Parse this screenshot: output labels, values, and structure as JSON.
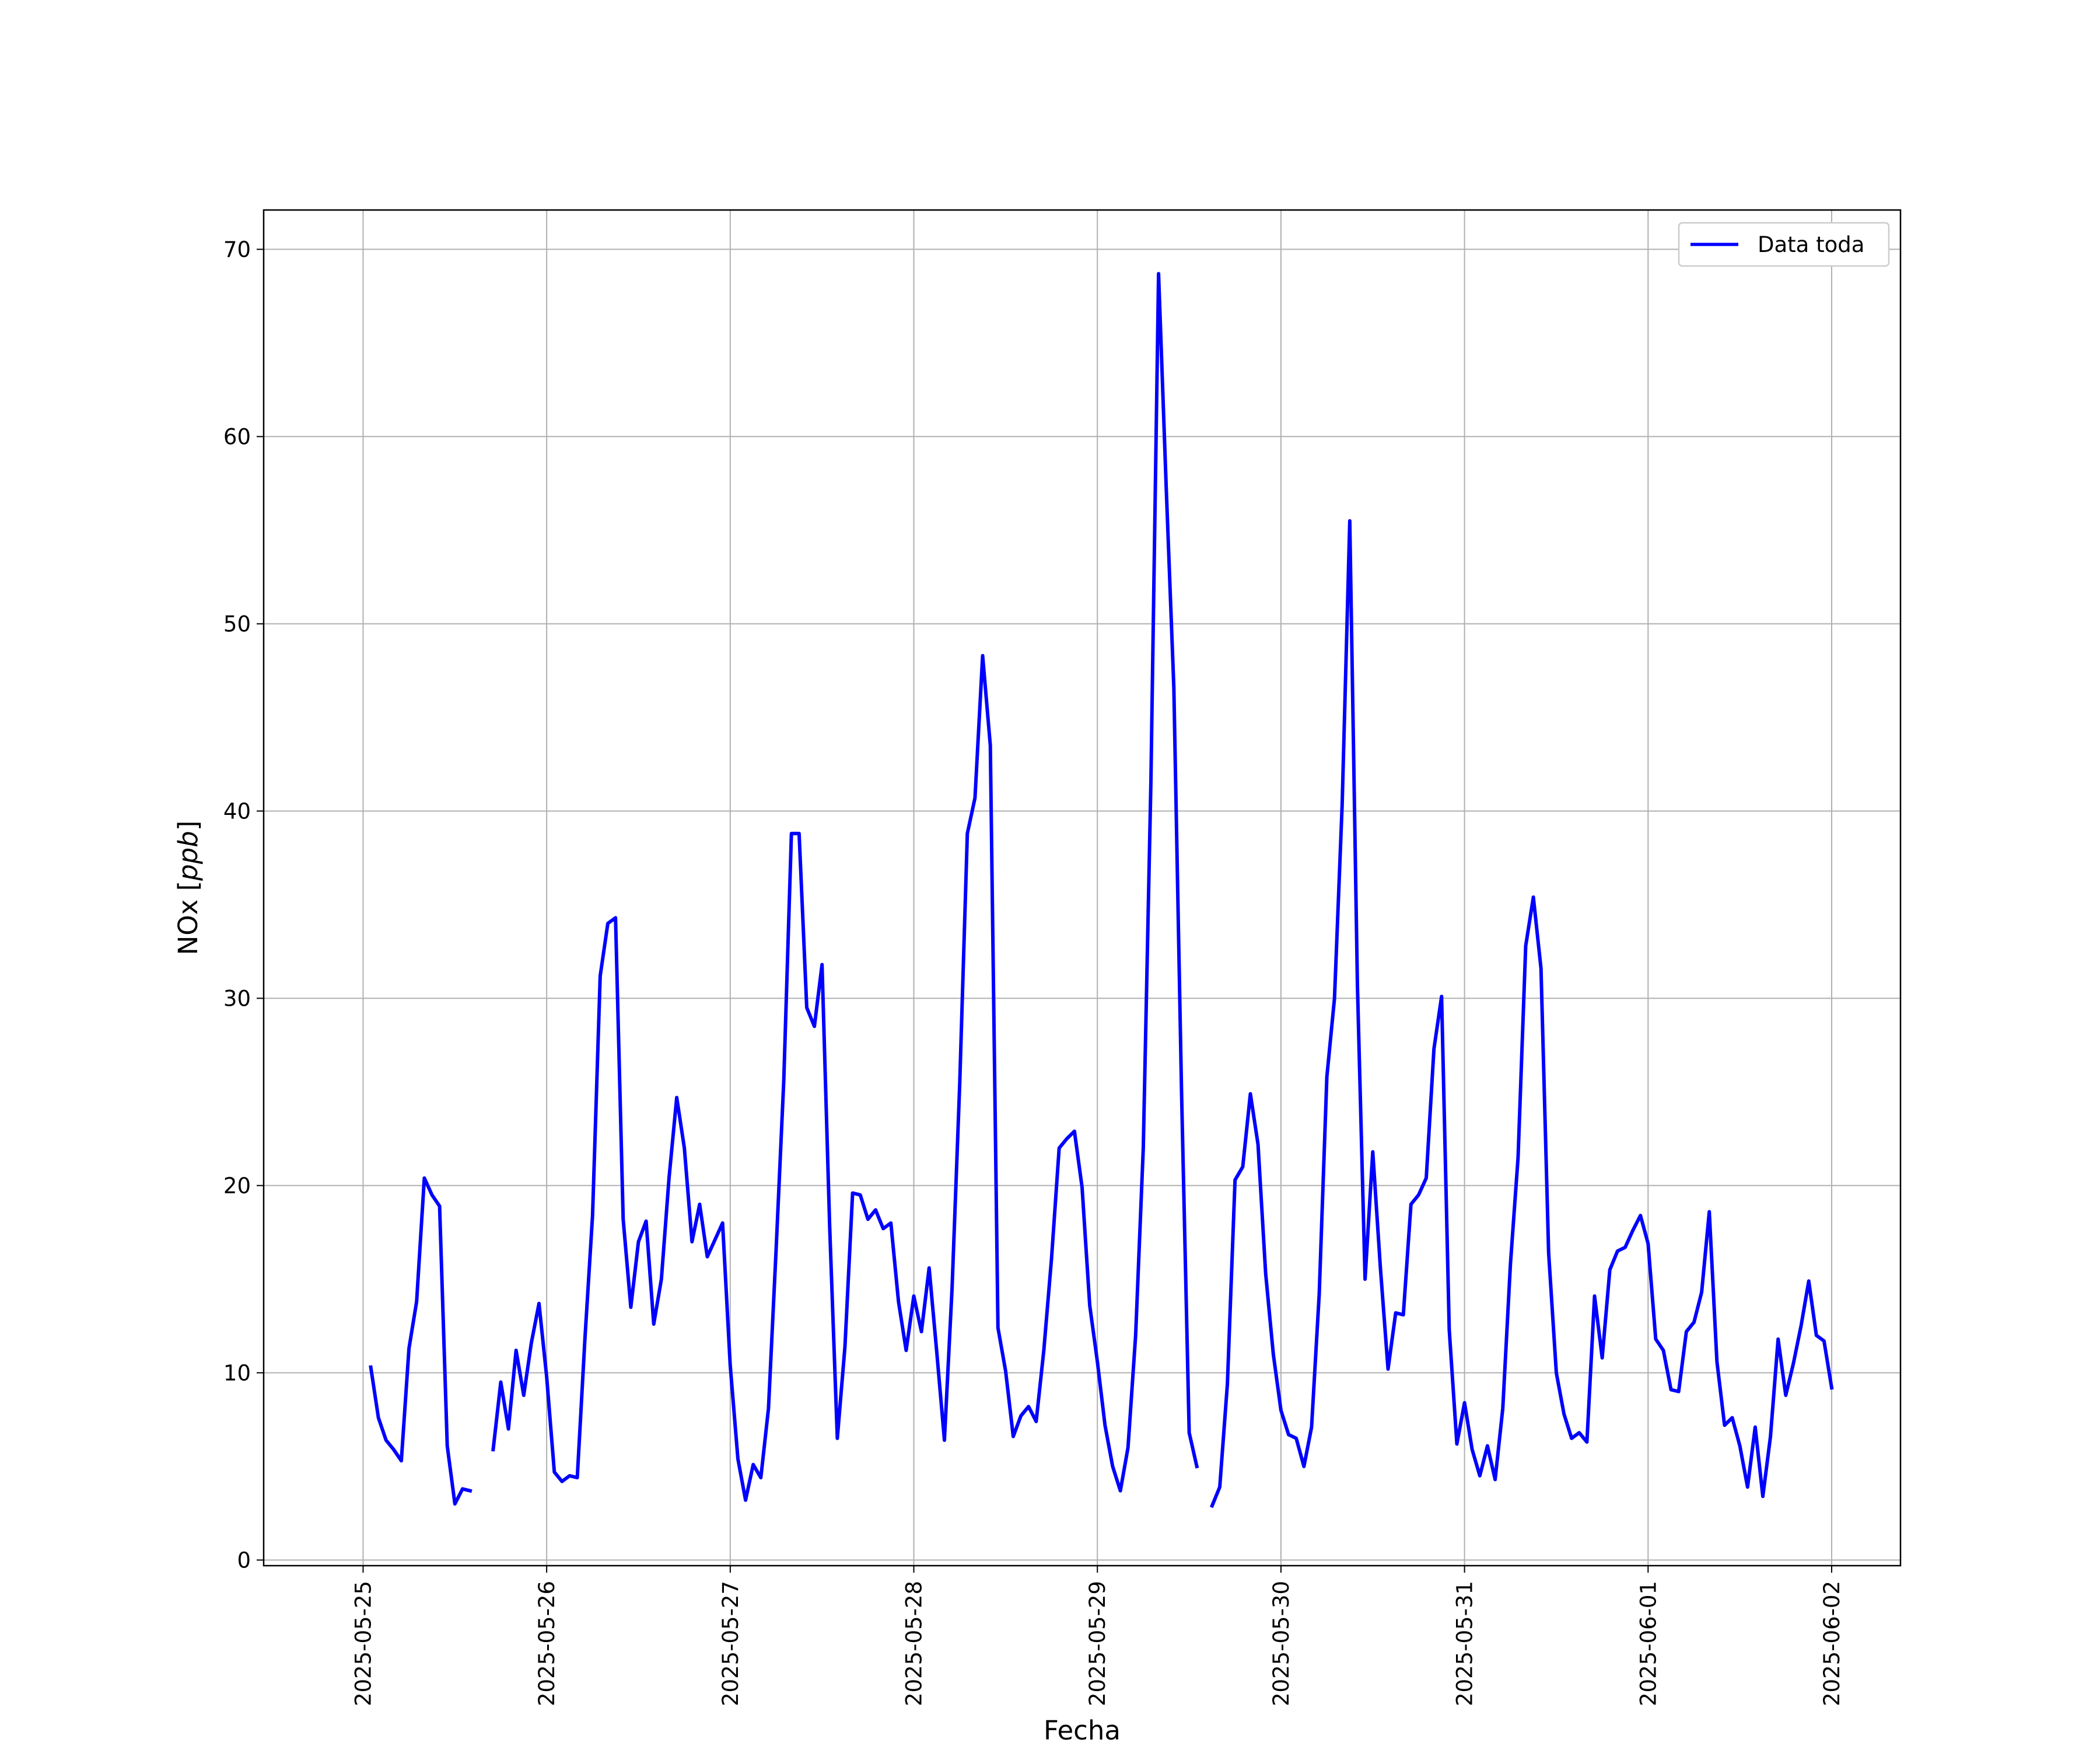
{
  "chart_data": {
    "type": "line",
    "xlabel": "Fecha",
    "ylabel": "NOx [ppb]",
    "ylabel_main": "NOx ",
    "ylabel_open": "[",
    "ylabel_unit": "ppb",
    "ylabel_close": "]",
    "x_ticks": [
      "2025-05-25",
      "2025-05-26",
      "2025-05-27",
      "2025-05-28",
      "2025-05-29",
      "2025-05-30",
      "2025-05-31",
      "2025-06-01",
      "2025-06-02"
    ],
    "y_ticks": [
      0,
      10,
      20,
      30,
      40,
      50,
      60,
      70
    ],
    "y_tick_labels": [
      "0",
      "10",
      "20",
      "30",
      "40",
      "50",
      "60",
      "70"
    ],
    "xlim": [
      "2025-05-24 11:00",
      "2025-06-02 09:00"
    ],
    "ylim": [
      -0.3,
      72.1
    ],
    "grid": true,
    "legend_position": "upper-right",
    "series": [
      {
        "name": "Data toda",
        "color": "#0000ff",
        "segments": [
          [
            [
              "2025-05-25 01:00",
              10.3
            ],
            [
              "2025-05-25 02:00",
              7.6
            ],
            [
              "2025-05-25 03:00",
              6.4
            ],
            [
              "2025-05-25 04:00",
              5.9
            ],
            [
              "2025-05-25 05:00",
              5.3
            ],
            [
              "2025-05-25 06:00",
              11.3
            ],
            [
              "2025-05-25 07:00",
              13.8
            ],
            [
              "2025-05-25 08:00",
              20.4
            ],
            [
              "2025-05-25 09:00",
              19.5
            ],
            [
              "2025-05-25 10:00",
              18.9
            ],
            [
              "2025-05-25 11:00",
              6.1
            ],
            [
              "2025-05-25 12:00",
              3.0
            ],
            [
              "2025-05-25 13:00",
              3.8
            ],
            [
              "2025-05-25 14:00",
              3.7
            ]
          ],
          [
            [
              "2025-05-25 17:00",
              5.9
            ],
            [
              "2025-05-25 18:00",
              9.5
            ],
            [
              "2025-05-25 19:00",
              7.0
            ],
            [
              "2025-05-25 20:00",
              11.2
            ],
            [
              "2025-05-25 21:00",
              8.8
            ],
            [
              "2025-05-25 22:00",
              11.6
            ],
            [
              "2025-05-25 23:00",
              13.7
            ],
            [
              "2025-05-26 00:00",
              9.8
            ],
            [
              "2025-05-26 01:00",
              4.7
            ],
            [
              "2025-05-26 02:00",
              4.2
            ],
            [
              "2025-05-26 03:00",
              4.5
            ],
            [
              "2025-05-26 04:00",
              4.4
            ],
            [
              "2025-05-26 05:00",
              11.8
            ],
            [
              "2025-05-26 06:00",
              18.4
            ],
            [
              "2025-05-26 07:00",
              31.2
            ],
            [
              "2025-05-26 08:00",
              34.0
            ],
            [
              "2025-05-26 09:00",
              34.3
            ],
            [
              "2025-05-26 10:00",
              18.2
            ],
            [
              "2025-05-26 11:00",
              13.5
            ],
            [
              "2025-05-26 12:00",
              17.0
            ],
            [
              "2025-05-26 13:00",
              18.1
            ],
            [
              "2025-05-26 14:00",
              12.6
            ],
            [
              "2025-05-26 15:00",
              15.0
            ],
            [
              "2025-05-26 16:00",
              20.4
            ],
            [
              "2025-05-26 17:00",
              24.7
            ],
            [
              "2025-05-26 18:00",
              22.0
            ],
            [
              "2025-05-26 19:00",
              17.0
            ],
            [
              "2025-05-26 20:00",
              19.0
            ],
            [
              "2025-05-26 21:00",
              16.2
            ],
            [
              "2025-05-26 22:00",
              17.1
            ],
            [
              "2025-05-26 23:00",
              18.0
            ],
            [
              "2025-05-27 00:00",
              10.4
            ],
            [
              "2025-05-27 01:00",
              5.4
            ],
            [
              "2025-05-27 02:00",
              3.2
            ],
            [
              "2025-05-27 03:00",
              5.1
            ],
            [
              "2025-05-27 04:00",
              4.4
            ],
            [
              "2025-05-27 05:00",
              8.1
            ],
            [
              "2025-05-27 06:00",
              16.6
            ],
            [
              "2025-05-27 07:00",
              25.6
            ],
            [
              "2025-05-27 08:00",
              38.8
            ],
            [
              "2025-05-27 09:00",
              38.8
            ],
            [
              "2025-05-27 10:00",
              29.5
            ],
            [
              "2025-05-27 11:00",
              28.5
            ],
            [
              "2025-05-27 12:00",
              31.8
            ],
            [
              "2025-05-27 13:00",
              17.8
            ],
            [
              "2025-05-27 14:00",
              6.5
            ],
            [
              "2025-05-27 15:00",
              11.4
            ],
            [
              "2025-05-27 16:00",
              19.6
            ],
            [
              "2025-05-27 17:00",
              19.5
            ],
            [
              "2025-05-27 18:00",
              18.2
            ],
            [
              "2025-05-27 19:00",
              18.7
            ],
            [
              "2025-05-27 20:00",
              17.7
            ],
            [
              "2025-05-27 21:00",
              18.0
            ],
            [
              "2025-05-27 22:00",
              13.8
            ],
            [
              "2025-05-27 23:00",
              11.2
            ],
            [
              "2025-05-28 00:00",
              14.1
            ],
            [
              "2025-05-28 01:00",
              12.2
            ],
            [
              "2025-05-28 02:00",
              15.6
            ],
            [
              "2025-05-28 03:00",
              11.1
            ],
            [
              "2025-05-28 04:00",
              6.4
            ],
            [
              "2025-05-28 05:00",
              14.5
            ],
            [
              "2025-05-28 06:00",
              25.4
            ],
            [
              "2025-05-28 07:00",
              38.8
            ],
            [
              "2025-05-28 08:00",
              40.7
            ],
            [
              "2025-05-28 09:00",
              48.3
            ],
            [
              "2025-05-28 10:00",
              43.5
            ],
            [
              "2025-05-28 11:00",
              12.4
            ],
            [
              "2025-05-28 12:00",
              10.1
            ],
            [
              "2025-05-28 13:00",
              6.6
            ],
            [
              "2025-05-28 14:00",
              7.7
            ],
            [
              "2025-05-28 15:00",
              8.2
            ],
            [
              "2025-05-28 16:00",
              7.4
            ],
            [
              "2025-05-28 17:00",
              11.2
            ],
            [
              "2025-05-28 18:00",
              16.1
            ],
            [
              "2025-05-28 19:00",
              22.0
            ],
            [
              "2025-05-28 20:00",
              22.5
            ],
            [
              "2025-05-28 21:00",
              22.9
            ],
            [
              "2025-05-28 22:00",
              19.9
            ],
            [
              "2025-05-28 23:00",
              13.6
            ],
            [
              "2025-05-29 00:00",
              10.6
            ],
            [
              "2025-05-29 01:00",
              7.2
            ],
            [
              "2025-05-29 02:00",
              5.0
            ],
            [
              "2025-05-29 03:00",
              3.7
            ],
            [
              "2025-05-29 04:00",
              6.0
            ],
            [
              "2025-05-29 05:00",
              12.0
            ],
            [
              "2025-05-29 06:00",
              22.0
            ],
            [
              "2025-05-29 07:00",
              41.6
            ],
            [
              "2025-05-29 08:00",
              68.7
            ],
            [
              "2025-05-29 09:00",
              57.3
            ],
            [
              "2025-05-29 10:00",
              46.6
            ],
            [
              "2025-05-29 11:00",
              25.0
            ],
            [
              "2025-05-29 12:00",
              6.8
            ],
            [
              "2025-05-29 13:00",
              5.0
            ]
          ],
          [
            [
              "2025-05-29 15:00",
              2.9
            ],
            [
              "2025-05-29 16:00",
              3.9
            ],
            [
              "2025-05-29 17:00",
              9.4
            ],
            [
              "2025-05-29 18:00",
              20.3
            ],
            [
              "2025-05-29 19:00",
              21.0
            ],
            [
              "2025-05-29 20:00",
              24.9
            ],
            [
              "2025-05-29 21:00",
              22.2
            ],
            [
              "2025-05-29 22:00",
              15.3
            ],
            [
              "2025-05-29 23:00",
              11.0
            ],
            [
              "2025-05-30 00:00",
              8.0
            ],
            [
              "2025-05-30 01:00",
              6.7
            ],
            [
              "2025-05-30 02:00",
              6.5
            ],
            [
              "2025-05-30 03:00",
              5.0
            ],
            [
              "2025-05-30 04:00",
              7.1
            ],
            [
              "2025-05-30 05:00",
              14.2
            ],
            [
              "2025-05-30 06:00",
              25.8
            ],
            [
              "2025-05-30 07:00",
              30.0
            ],
            [
              "2025-05-30 08:00",
              40.3
            ],
            [
              "2025-05-30 09:00",
              55.5
            ],
            [
              "2025-05-30 10:00",
              30.7
            ],
            [
              "2025-05-30 11:00",
              15.0
            ],
            [
              "2025-05-30 12:00",
              21.8
            ],
            [
              "2025-05-30 13:00",
              15.6
            ],
            [
              "2025-05-30 14:00",
              10.2
            ],
            [
              "2025-05-30 15:00",
              13.2
            ],
            [
              "2025-05-30 16:00",
              13.1
            ],
            [
              "2025-05-30 17:00",
              19.0
            ],
            [
              "2025-05-30 18:00",
              19.5
            ],
            [
              "2025-05-30 19:00",
              20.4
            ],
            [
              "2025-05-30 20:00",
              27.3
            ],
            [
              "2025-05-30 21:00",
              30.1
            ],
            [
              "2025-05-30 22:00",
              12.3
            ],
            [
              "2025-05-30 23:00",
              6.2
            ],
            [
              "2025-05-31 00:00",
              8.4
            ],
            [
              "2025-05-31 01:00",
              5.9
            ],
            [
              "2025-05-31 02:00",
              4.5
            ],
            [
              "2025-05-31 03:00",
              6.1
            ],
            [
              "2025-05-31 04:00",
              4.3
            ],
            [
              "2025-05-31 05:00",
              8.1
            ],
            [
              "2025-05-31 06:00",
              15.8
            ],
            [
              "2025-05-31 07:00",
              21.5
            ],
            [
              "2025-05-31 08:00",
              32.8
            ],
            [
              "2025-05-31 09:00",
              35.4
            ],
            [
              "2025-05-31 10:00",
              31.6
            ],
            [
              "2025-05-31 11:00",
              16.4
            ],
            [
              "2025-05-31 12:00",
              10.0
            ],
            [
              "2025-05-31 13:00",
              7.8
            ],
            [
              "2025-05-31 14:00",
              6.5
            ],
            [
              "2025-05-31 15:00",
              6.8
            ],
            [
              "2025-05-31 16:00",
              6.3
            ],
            [
              "2025-05-31 17:00",
              14.1
            ],
            [
              "2025-05-31 18:00",
              10.8
            ],
            [
              "2025-05-31 19:00",
              15.5
            ],
            [
              "2025-05-31 20:00",
              16.5
            ],
            [
              "2025-05-31 21:00",
              16.7
            ],
            [
              "2025-05-31 22:00",
              17.6
            ],
            [
              "2025-05-31 23:00",
              18.4
            ],
            [
              "2025-06-01 00:00",
              16.9
            ],
            [
              "2025-06-01 01:00",
              11.8
            ],
            [
              "2025-06-01 02:00",
              11.2
            ],
            [
              "2025-06-01 03:00",
              9.1
            ],
            [
              "2025-06-01 04:00",
              9.0
            ],
            [
              "2025-06-01 05:00",
              12.2
            ],
            [
              "2025-06-01 06:00",
              12.7
            ],
            [
              "2025-06-01 07:00",
              14.3
            ],
            [
              "2025-06-01 08:00",
              18.6
            ],
            [
              "2025-06-01 09:00",
              10.6
            ],
            [
              "2025-06-01 10:00",
              7.2
            ],
            [
              "2025-06-01 11:00",
              7.6
            ],
            [
              "2025-06-01 12:00",
              6.1
            ],
            [
              "2025-06-01 13:00",
              3.9
            ],
            [
              "2025-06-01 14:00",
              7.1
            ],
            [
              "2025-06-01 15:00",
              3.4
            ],
            [
              "2025-06-01 16:00",
              6.6
            ],
            [
              "2025-06-01 17:00",
              11.8
            ],
            [
              "2025-06-01 18:00",
              8.8
            ],
            [
              "2025-06-01 19:00",
              10.5
            ],
            [
              "2025-06-01 20:00",
              12.5
            ],
            [
              "2025-06-01 21:00",
              14.9
            ],
            [
              "2025-06-01 22:00",
              12.0
            ],
            [
              "2025-06-01 23:00",
              11.7
            ],
            [
              "2025-06-02 00:00",
              9.2
            ]
          ]
        ]
      }
    ]
  }
}
